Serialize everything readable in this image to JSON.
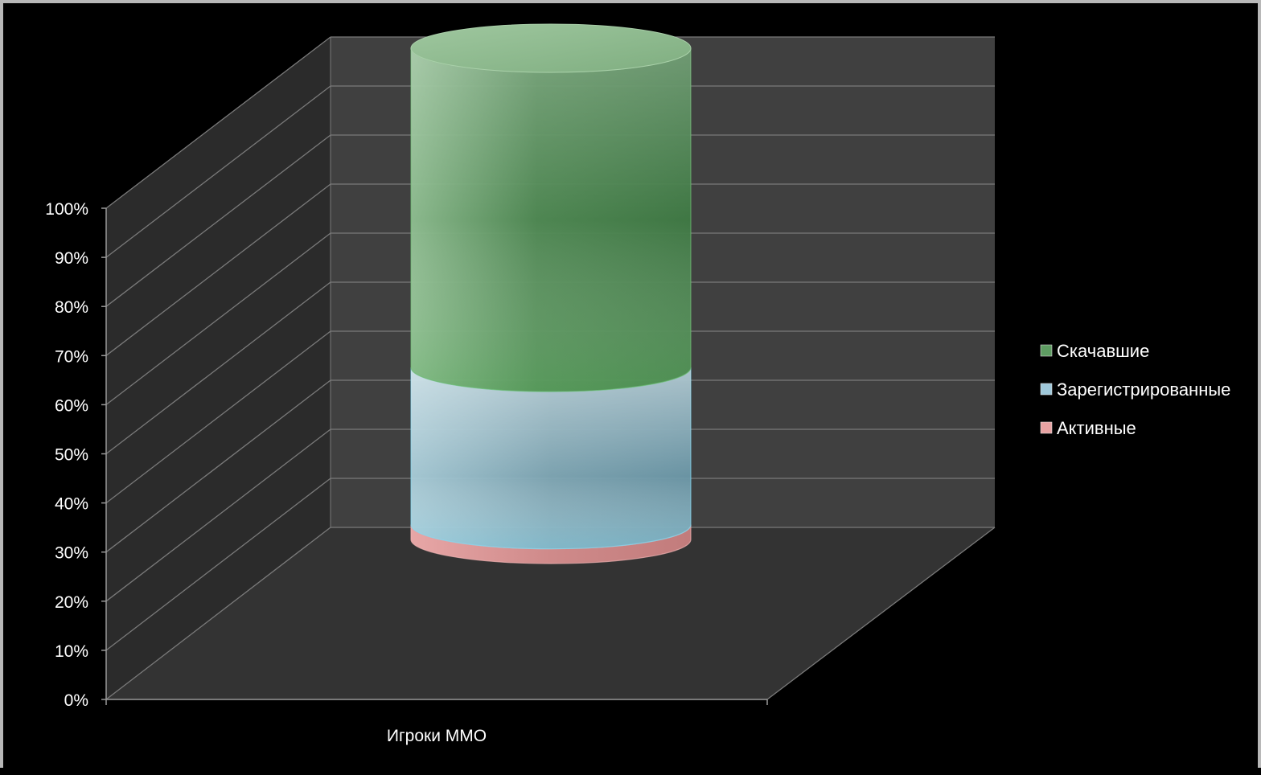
{
  "chart_data": {
    "type": "bar",
    "subtype": "3d-stacked-cylinder-100-percent",
    "categories": [
      "Игроки ММО"
    ],
    "series": [
      {
        "name": "Активные",
        "values": [
          3
        ],
        "color": "#e8a3a3"
      },
      {
        "name": "Зарегистрированные",
        "values": [
          32
        ],
        "color": "#9fc8da"
      },
      {
        "name": "Скачавшие",
        "values": [
          65
        ],
        "color": "#5e9c62"
      }
    ],
    "yticks": [
      "0%",
      "10%",
      "20%",
      "30%",
      "40%",
      "50%",
      "60%",
      "70%",
      "80%",
      "90%",
      "100%"
    ],
    "ylim": [
      0,
      100
    ],
    "legend": {
      "position": "right",
      "entries": [
        "Скачавшие",
        "Зарегистрированные",
        "Активные"
      ]
    },
    "grid": true,
    "colors": {
      "background": "#000000",
      "back_wall": "#404040",
      "side_wall": "#2b2b2b",
      "floor": "#333333",
      "gridline": "#7a7a7a",
      "text": "#ffffff"
    }
  }
}
